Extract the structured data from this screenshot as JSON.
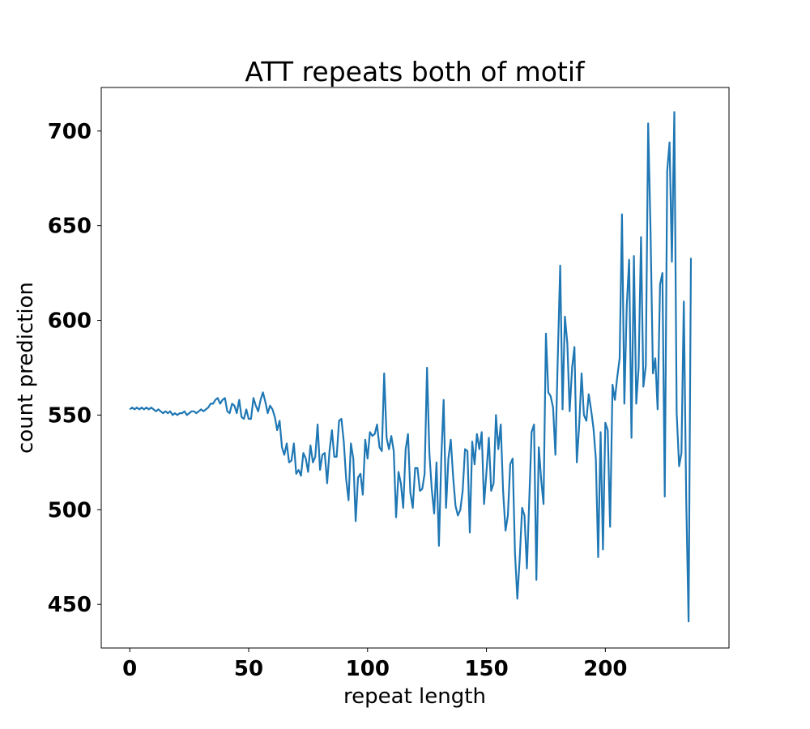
{
  "chart_data": {
    "type": "line",
    "title": "ATT repeats both of motif",
    "xlabel": "repeat length",
    "ylabel": "count prediction",
    "xlim": [
      -12,
      252
    ],
    "ylim": [
      427,
      723
    ],
    "xticks": [
      0,
      50,
      100,
      150,
      200
    ],
    "yticks": [
      450,
      500,
      550,
      600,
      650,
      700
    ],
    "xtick_labels": [
      "0",
      "50",
      "100",
      "150",
      "200"
    ],
    "ytick_labels": [
      "450",
      "500",
      "550",
      "600",
      "650",
      "700"
    ],
    "grid": false,
    "series_color": "#1f77b4",
    "series": [
      {
        "name": "count prediction",
        "values": [
          553,
          554,
          553,
          554,
          553,
          554,
          553,
          554,
          553,
          554,
          553,
          552,
          553,
          552,
          551,
          552,
          551,
          552,
          550,
          551,
          550,
          551,
          551,
          552,
          550,
          551,
          552,
          552,
          551,
          552,
          553,
          552,
          553,
          554,
          556,
          556,
          558,
          559,
          556,
          558,
          559,
          552,
          551,
          556,
          555,
          551,
          558,
          549,
          548,
          553,
          548,
          548,
          559,
          555,
          552,
          558,
          562,
          557,
          551,
          555,
          553,
          549,
          542,
          547,
          533,
          529,
          535,
          525,
          526,
          535,
          519,
          521,
          518,
          530,
          527,
          520,
          534,
          525,
          528,
          545,
          521,
          529,
          530,
          514,
          531,
          542,
          528,
          528,
          547,
          548,
          536,
          516,
          505,
          535,
          527,
          494,
          517,
          519,
          508,
          537,
          527,
          541,
          539,
          540,
          545,
          533,
          531,
          572,
          538,
          532,
          539,
          531,
          496,
          520,
          514,
          501,
          532,
          540,
          509,
          501,
          522,
          522,
          510,
          511,
          519,
          575,
          530,
          511,
          498,
          525,
          481,
          527,
          558,
          501,
          527,
          537,
          517,
          502,
          497,
          500,
          510,
          532,
          531,
          488,
          536,
          524,
          540,
          532,
          541,
          503,
          520,
          538,
          510,
          514,
          550,
          532,
          545,
          510,
          489,
          497,
          524,
          527,
          477,
          453,
          475,
          501,
          497,
          469,
          505,
          541,
          545,
          463,
          533,
          516,
          503,
          593,
          562,
          560,
          554,
          529,
          580,
          629,
          553,
          602,
          588,
          552,
          575,
          586,
          525,
          545,
          572,
          550,
          547,
          561,
          553,
          543,
          527,
          475,
          541,
          479,
          546,
          542,
          491,
          566,
          558,
          570,
          580,
          656,
          556,
          608,
          632,
          538,
          634,
          556,
          575,
          644,
          565,
          576,
          704,
          648,
          572,
          580,
          553,
          619,
          625,
          507,
          679,
          694,
          631,
          710,
          551,
          523,
          530,
          610,
          505,
          441,
          633
        ]
      }
    ]
  }
}
